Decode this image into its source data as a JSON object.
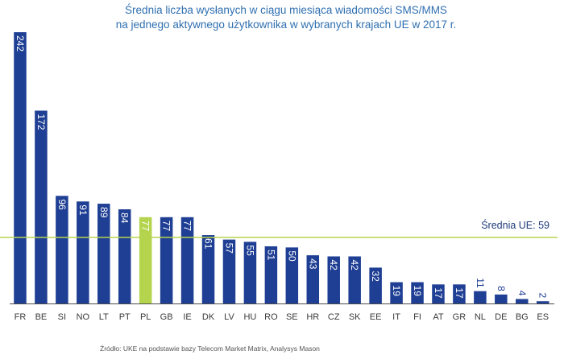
{
  "chart_data": {
    "type": "bar",
    "title_lines": [
      "Średnia liczba wysłanych w ciągu miesiąca wiadomości SMS/MMS",
      "na jednego aktywnego użytkownika w wybranych krajach UE w 2017 r."
    ],
    "categories": [
      "FR",
      "BE",
      "SI",
      "NO",
      "LT",
      "PT",
      "PL",
      "GB",
      "IE",
      "DK",
      "LV",
      "HU",
      "RO",
      "SE",
      "HR",
      "CZ",
      "SK",
      "EE",
      "IT",
      "FI",
      "AT",
      "GR",
      "NL",
      "DE",
      "BG",
      "ES"
    ],
    "values": [
      242,
      172,
      96,
      91,
      89,
      84,
      77,
      77,
      77,
      61,
      57,
      55,
      51,
      50,
      43,
      42,
      42,
      32,
      19,
      19,
      17,
      17,
      11,
      8,
      4,
      2
    ],
    "highlight_category": "PL",
    "average": {
      "label": "Średnia UE: 59",
      "value": 59
    },
    "ylim": [
      0,
      242
    ],
    "xlabel": "",
    "ylabel": "",
    "colors": {
      "bar": "#1f3f94",
      "highlight": "#b5d44e",
      "average_line": "#b5d44e",
      "title": "#2f6fb0",
      "axis": "#4a4a4a"
    }
  },
  "source": "Źródło: UKE na podstawie bazy Telecom Market Matrix, Analysys Mason"
}
